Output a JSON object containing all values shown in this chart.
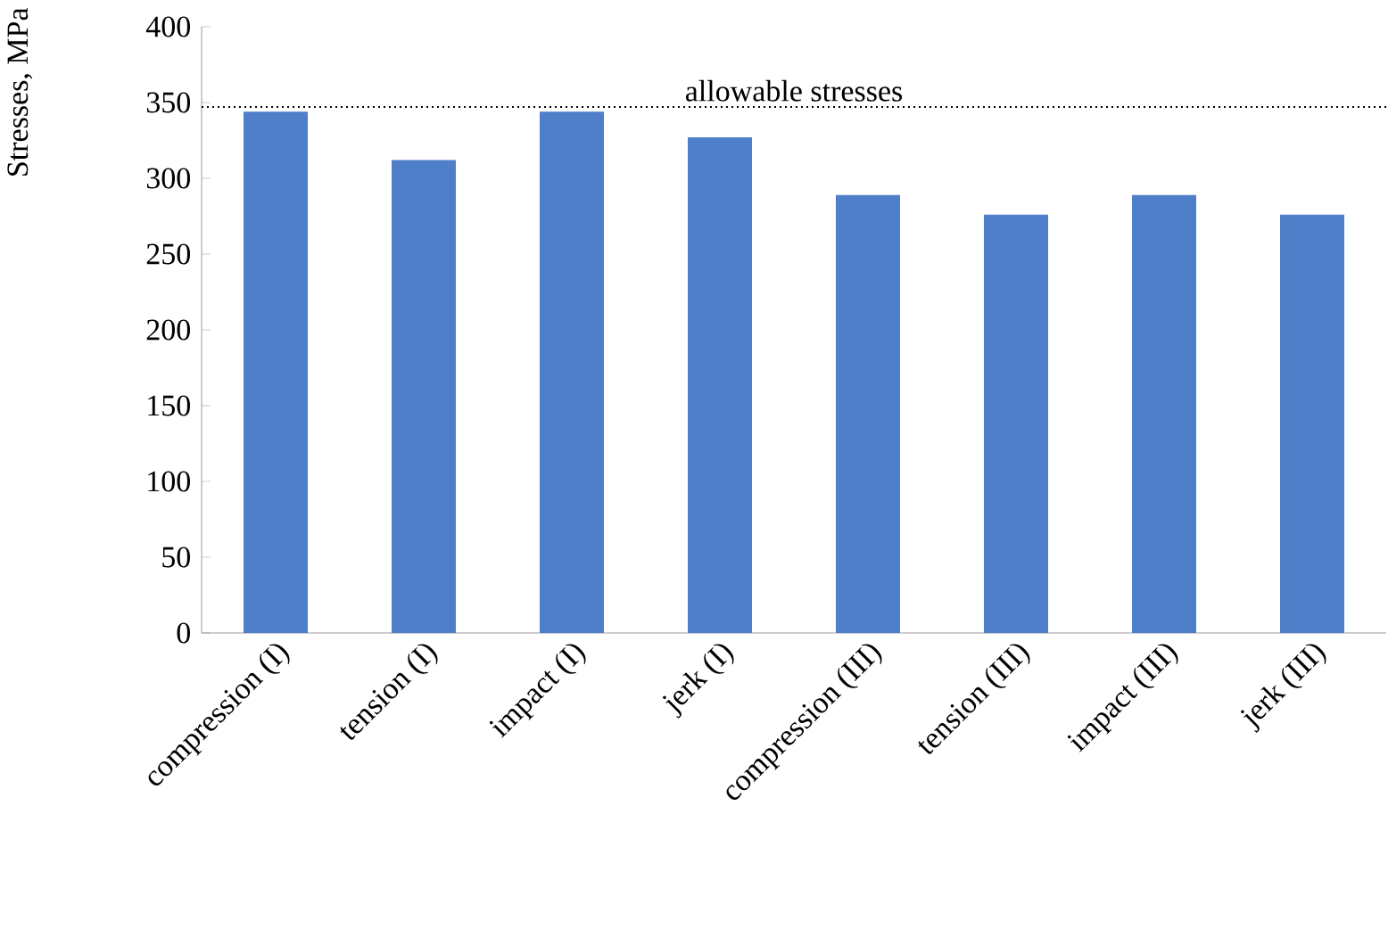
{
  "chart_data": {
    "type": "bar",
    "ylabel": "Stresses, MPa",
    "categories": [
      "compression (I)",
      "tension (I)",
      "impact (I)",
      "jerk (I)",
      "compression (III)",
      "tension (III)",
      "impact (III)",
      "jerk (III)"
    ],
    "values": [
      344,
      312,
      344,
      327,
      289,
      276,
      289,
      276
    ],
    "color": "#4f7fc8",
    "ylim": [
      0,
      400
    ],
    "yticks": [
      0,
      50,
      100,
      150,
      200,
      250,
      300,
      350,
      400
    ],
    "grid": false,
    "ref_lines": [
      {
        "axis": "y",
        "value": 347,
        "label": "allowable stresses",
        "line_style": "dotted",
        "color": "#000000"
      }
    ]
  }
}
